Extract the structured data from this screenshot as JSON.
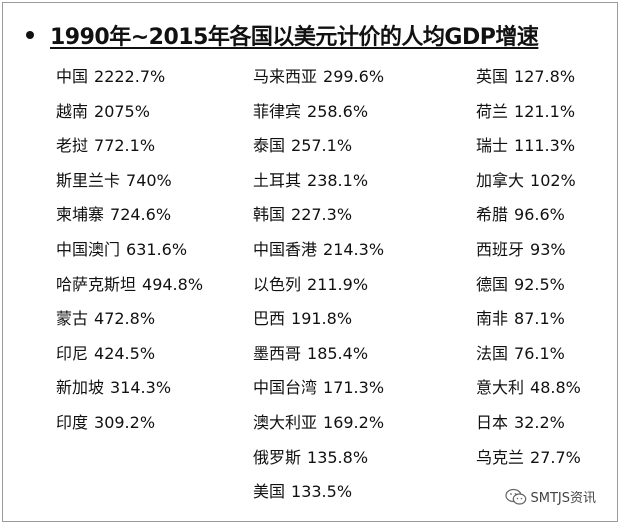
{
  "title": "1990年~2015年各国以美元计价的人均GDP增速",
  "columns": [
    [
      {
        "name": "中国",
        "value": "2222.7%"
      },
      {
        "name": "越南",
        "value": "2075%"
      },
      {
        "name": "老挝",
        "value": "772.1%"
      },
      {
        "name": "斯里兰卡",
        "value": "740%"
      },
      {
        "name": "柬埔寨",
        "value": "724.6%"
      },
      {
        "name": "中国澳门",
        "value": "631.6%"
      },
      {
        "name": "哈萨克斯坦",
        "value": "494.8%"
      },
      {
        "name": "蒙古",
        "value": "472.8%"
      },
      {
        "name": "印尼",
        "value": "424.5%"
      },
      {
        "name": "新加坡",
        "value": "314.3%"
      },
      {
        "name": "印度",
        "value": "309.2%"
      }
    ],
    [
      {
        "name": "马来西亚",
        "value": "299.6%"
      },
      {
        "name": "菲律宾",
        "value": "258.6%"
      },
      {
        "name": "泰国",
        "value": "257.1%"
      },
      {
        "name": "土耳其",
        "value": "238.1%"
      },
      {
        "name": "韩国",
        "value": "227.3%"
      },
      {
        "name": "中国香港",
        "value": "214.3%"
      },
      {
        "name": "以色列",
        "value": "211.9%"
      },
      {
        "name": "巴西",
        "value": "191.8%"
      },
      {
        "name": "墨西哥",
        "value": "185.4%"
      },
      {
        "name": "中国台湾",
        "value": "171.3%"
      },
      {
        "name": "澳大利亚",
        "value": "169.2%"
      },
      {
        "name": "俄罗斯",
        "value": "135.8%"
      },
      {
        "name": "美国",
        "value": "133.5%"
      }
    ],
    [
      {
        "name": "英国",
        "value": "127.8%"
      },
      {
        "name": "荷兰",
        "value": "121.1%"
      },
      {
        "name": "瑞士",
        "value": "111.3%"
      },
      {
        "name": "加拿大",
        "value": "102%"
      },
      {
        "name": "希腊",
        "value": "96.6%"
      },
      {
        "name": "西班牙",
        "value": "93%"
      },
      {
        "name": "德国",
        "value": "92.5%"
      },
      {
        "name": "南非",
        "value": "87.1%"
      },
      {
        "name": "法国",
        "value": "76.1%"
      },
      {
        "name": "意大利",
        "value": "48.8%"
      },
      {
        "name": "日本",
        "value": "32.2%"
      },
      {
        "name": "乌克兰",
        "value": "27.7%"
      }
    ]
  ],
  "watermark": {
    "icon": "wechat-icon",
    "text": "SMTJS资讯"
  }
}
